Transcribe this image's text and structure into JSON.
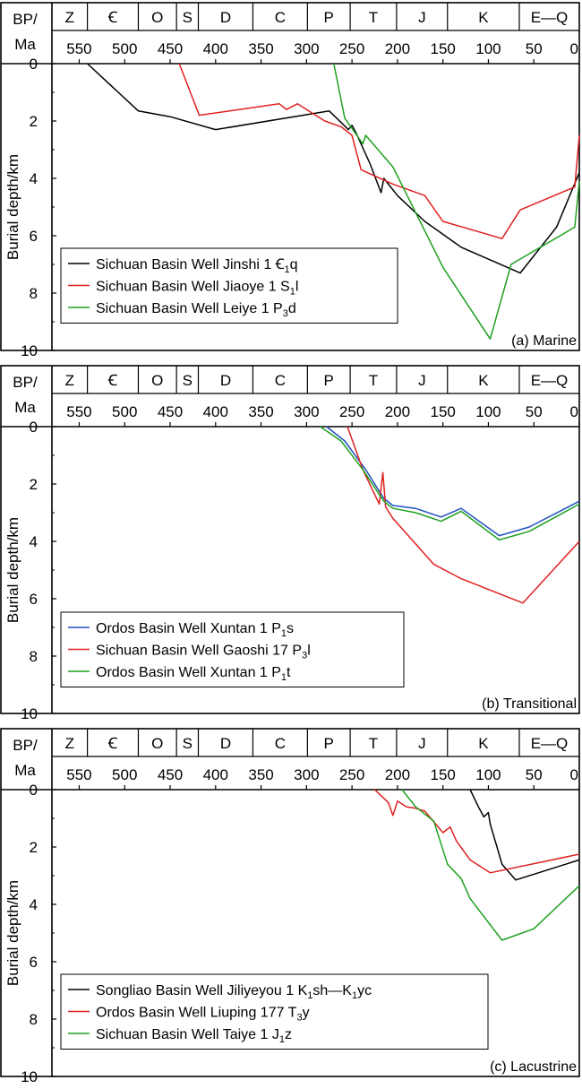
{
  "chart_data": [
    {
      "type": "line",
      "panel_label": "(a) Marine",
      "xlabel": "BP/ Ma",
      "xlabel_line1": "BP/",
      "xlabel_line2": "Ma",
      "ylabel": "Burial depth/km",
      "xlim": [
        580,
        0
      ],
      "ylim": [
        0,
        10
      ],
      "x_ticks": [
        550,
        500,
        450,
        400,
        350,
        300,
        250,
        200,
        150,
        100,
        50,
        0
      ],
      "y_ticks": [
        0,
        2,
        4,
        6,
        8,
        10
      ],
      "periods": [
        "Z",
        "Ꞓ",
        "O",
        "S",
        "D",
        "C",
        "P",
        "T",
        "J",
        "K",
        "E—Q"
      ],
      "legend_position": "bottom-left",
      "series": [
        {
          "name": "Sichuan Basin Well Jinshi 1 Ꞓ1q",
          "color": "#000000",
          "legend_text": "Sichuan Basin Well Jinshi 1 ",
          "legend_formation": "Ꞓ",
          "legend_sub": "1",
          "legend_suffix": "q",
          "x": [
            541,
            485,
            450,
            400,
            275,
            254,
            250,
            245,
            230,
            218,
            215,
            200,
            170,
            130,
            65,
            25,
            0
          ],
          "y": [
            0,
            1.65,
            1.85,
            2.3,
            1.65,
            2.3,
            2.15,
            2.45,
            3.5,
            4.5,
            4.0,
            4.6,
            5.5,
            6.4,
            7.3,
            5.7,
            3.8
          ]
        },
        {
          "name": "Sichuan Basin Well Jiaoye 1 S1l",
          "color": "#e02020",
          "legend_text": "Sichuan Basin Well Jiaoye 1 ",
          "legend_formation": "S",
          "legend_sub": "1",
          "legend_suffix": "l",
          "x": [
            440,
            418,
            330,
            322,
            310,
            280,
            262,
            250,
            240,
            205,
            170,
            150,
            85,
            65,
            5,
            0
          ],
          "y": [
            0,
            1.8,
            1.4,
            1.6,
            1.4,
            2.0,
            2.2,
            2.5,
            3.7,
            4.2,
            4.6,
            5.5,
            6.1,
            5.1,
            4.3,
            2.5
          ]
        },
        {
          "name": "Sichuan Basin Well Leiye 1 P3d",
          "color": "#1fa01f",
          "legend_text": "Sichuan Basin Well Leiye 1 ",
          "legend_formation": "P",
          "legend_sub": "3",
          "legend_suffix": "d",
          "x": [
            270,
            258,
            238,
            235,
            205,
            150,
            98,
            75,
            5,
            0
          ],
          "y": [
            0,
            1.9,
            2.8,
            2.5,
            3.6,
            7.1,
            9.6,
            7.0,
            5.7,
            4.1
          ]
        }
      ]
    },
    {
      "type": "line",
      "panel_label": "(b) Transitional",
      "xlabel": "BP/ Ma",
      "xlabel_line1": "BP/",
      "xlabel_line2": "Ma",
      "ylabel": "Burial depth/km",
      "xlim": [
        580,
        0
      ],
      "ylim": [
        0,
        10
      ],
      "x_ticks": [
        550,
        500,
        450,
        400,
        350,
        300,
        250,
        200,
        150,
        100,
        50,
        0
      ],
      "y_ticks": [
        0,
        2,
        4,
        6,
        8,
        10
      ],
      "periods": [
        "Z",
        "Ꞓ",
        "O",
        "S",
        "D",
        "C",
        "P",
        "T",
        "J",
        "K",
        "E—Q"
      ],
      "legend_position": "bottom-left",
      "series": [
        {
          "name": "Ordos Basin Well Xuntan 1 P1s",
          "color": "#2050c0",
          "legend_text": "Ordos Basin Well Xuntan 1 ",
          "legend_formation": "P",
          "legend_sub": "1",
          "legend_suffix": "s",
          "x": [
            278,
            258,
            235,
            215,
            205,
            180,
            152,
            130,
            88,
            55,
            0
          ],
          "y": [
            0,
            0.5,
            1.5,
            2.5,
            2.75,
            2.85,
            3.15,
            2.85,
            3.8,
            3.5,
            2.6
          ]
        },
        {
          "name": "Sichuan Basin Well Gaoshi 17 P3l",
          "color": "#e02020",
          "legend_text": "Sichuan Basin Well Gaoshi 17 ",
          "legend_formation": "P",
          "legend_sub": "3",
          "legend_suffix": "l",
          "x": [
            255,
            238,
            220,
            216,
            213,
            205,
            160,
            130,
            62,
            0
          ],
          "y": [
            0,
            1.5,
            2.7,
            1.6,
            2.8,
            3.2,
            4.8,
            5.3,
            6.15,
            4.0
          ]
        },
        {
          "name": "Ordos Basin Well Xuntan 1 P1t",
          "color": "#1fa01f",
          "legend_text": "Ordos Basin Well Xuntan 1 ",
          "legend_formation": "P",
          "legend_sub": "1",
          "legend_suffix": "t",
          "x": [
            285,
            262,
            238,
            215,
            205,
            180,
            152,
            130,
            88,
            55,
            0
          ],
          "y": [
            0,
            0.5,
            1.5,
            2.6,
            2.85,
            3.0,
            3.3,
            2.95,
            3.95,
            3.65,
            2.7
          ]
        }
      ]
    },
    {
      "type": "line",
      "panel_label": "(c) Lacustrine",
      "xlabel": "BP/ Ma",
      "xlabel_line1": "BP/",
      "xlabel_line2": "Ma",
      "ylabel": "Burial depth/km",
      "xlim": [
        580,
        0
      ],
      "ylim": [
        0,
        10
      ],
      "x_ticks": [
        550,
        500,
        450,
        400,
        350,
        300,
        250,
        200,
        150,
        100,
        50,
        0
      ],
      "y_ticks": [
        0,
        2,
        4,
        6,
        8,
        10
      ],
      "periods": [
        "Z",
        "Ꞓ",
        "O",
        "S",
        "D",
        "C",
        "P",
        "T",
        "J",
        "K",
        "E—Q"
      ],
      "legend_position": "bottom-left",
      "series": [
        {
          "name": "Songliao Basin Well Jiliyeyou 1 K1sh—K1yc",
          "color": "#000000",
          "legend_text": "Songliao Basin Well Jiliyeyou 1 ",
          "legend_formation": "K",
          "legend_sub": "1",
          "legend_suffix": "sh—K",
          "legend_sub2": "1",
          "legend_suffix2": "yc",
          "x": [
            120,
            111,
            105,
            100,
            98,
            85,
            70,
            0
          ],
          "y": [
            0,
            0.6,
            0.95,
            0.8,
            1.2,
            2.6,
            3.15,
            2.45
          ]
        },
        {
          "name": "Ordos Basin Well Liuping 177 T3y",
          "color": "#e02020",
          "legend_text": "Ordos Basin Well Liuping 177 ",
          "legend_formation": "T",
          "legend_sub": "3",
          "legend_suffix": "y",
          "x": [
            225,
            210,
            205,
            200,
            190,
            180,
            170,
            150,
            142,
            135,
            120,
            98,
            0
          ],
          "y": [
            0,
            0.45,
            0.9,
            0.4,
            0.6,
            0.65,
            0.75,
            1.5,
            1.3,
            1.8,
            2.45,
            2.9,
            2.25
          ]
        },
        {
          "name": "Sichuan Basin Well Taiye 1 J1z",
          "color": "#1fa01f",
          "legend_text": "Sichuan Basin Well Taiye 1 ",
          "legend_formation": "J",
          "legend_sub": "1",
          "legend_suffix": "z",
          "x": [
            195,
            180,
            160,
            145,
            130,
            120,
            85,
            50,
            0
          ],
          "y": [
            0,
            0.6,
            1.1,
            2.6,
            3.1,
            3.8,
            5.25,
            4.85,
            3.35
          ]
        }
      ]
    }
  ]
}
